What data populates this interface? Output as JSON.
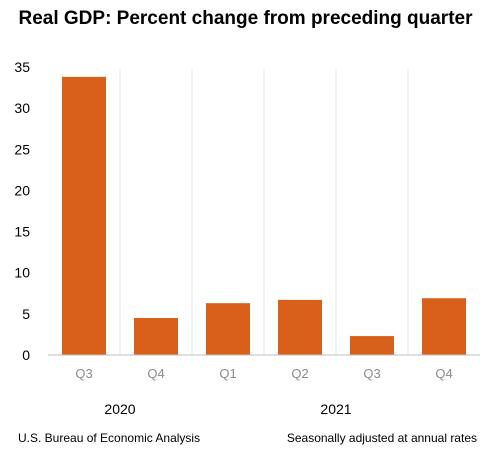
{
  "title": "Real GDP:  Percent change from preceding quarter",
  "source": "U.S. Bureau of Economic Analysis",
  "note": "Seasonally adjusted at annual rates",
  "colors": {
    "bar": "#D9601B",
    "axis": "#BFBFBF",
    "tick_label": "#000000",
    "category_label": "#8C8C8C"
  },
  "chart_data": {
    "type": "bar",
    "categories": [
      "Q3",
      "Q4",
      "Q1",
      "Q2",
      "Q3",
      "Q4"
    ],
    "groups": [
      {
        "label": "2020",
        "span": [
          0,
          1
        ]
      },
      {
        "label": "2021",
        "span": [
          2,
          5
        ]
      }
    ],
    "values": [
      33.8,
      4.5,
      6.3,
      6.7,
      2.3,
      6.9
    ],
    "ylim": [
      0,
      35
    ],
    "yticks": [
      0,
      5,
      10,
      15,
      20,
      25,
      30,
      35
    ],
    "grid": false
  }
}
